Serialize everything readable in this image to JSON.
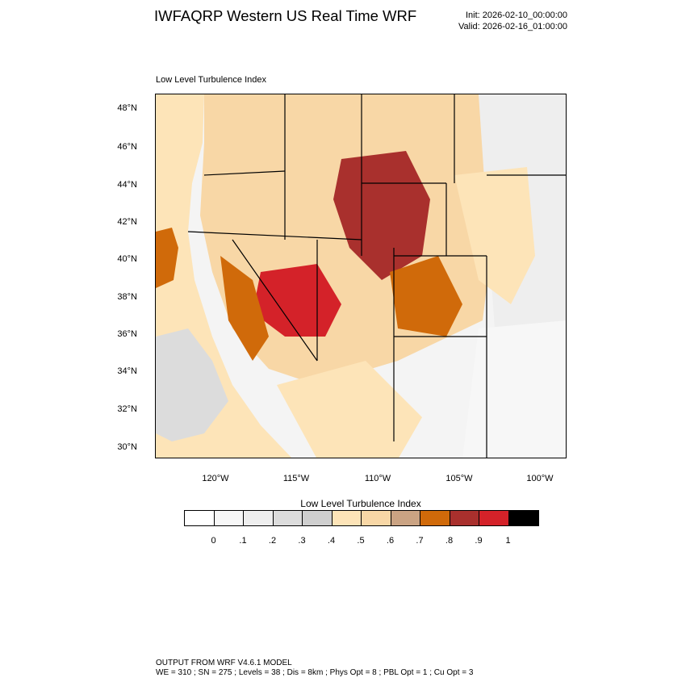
{
  "header": {
    "title": "IWFAQRP Western US Real Time WRF",
    "init": "Init: 2026-02-10_00:00:00",
    "valid": "Valid: 2026-02-16_01:00:00"
  },
  "plot": {
    "label": "Low Level Turbulence Index",
    "lat_ticks": [
      "48°N",
      "46°N",
      "44°N",
      "42°N",
      "40°N",
      "38°N",
      "36°N",
      "34°N",
      "32°N",
      "30°N"
    ],
    "lon_ticks": [
      "120°W",
      "115°W",
      "110°W",
      "105°W",
      "100°W"
    ]
  },
  "colorbar": {
    "title": "Low Level Turbulence Index",
    "colors": [
      "#ffffff",
      "#f7f7f7",
      "#eeeeee",
      "#dcdcdc",
      "#cfcfcf",
      "#fde4b8",
      "#f8d7a6",
      "#caa383",
      "#d06a0a",
      "#a9302d",
      "#d42229",
      "#000000"
    ],
    "labels": [
      "0",
      ".1",
      ".2",
      ".3",
      ".4",
      ".5",
      ".6",
      ".7",
      ".8",
      ".9",
      "1"
    ]
  },
  "footer": {
    "line1": "OUTPUT FROM WRF V4.6.1 MODEL",
    "line2": "WE = 310 ; SN = 275 ; Levels = 38 ; Dis = 8km ; Phys Opt = 8 ; PBL Opt = 1 ; Cu Opt = 3"
  }
}
